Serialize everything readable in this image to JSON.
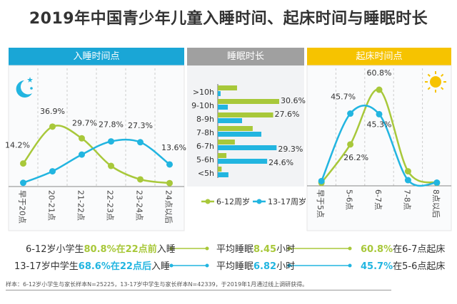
{
  "title": "2019年中国青少年儿童入睡时间、起床时间与睡眠时长",
  "colors": {
    "green": "#a8c83a",
    "blue": "#22b5e0",
    "sleep_header": "#1aa6d6",
    "duration_header": "#a0a0a0",
    "wake_header": "#f6c300"
  },
  "legend": [
    "6-12周岁",
    "13-17周岁"
  ],
  "chart_data": [
    {
      "type": "line",
      "title": "入睡时间点",
      "icon": "moon-icon",
      "categories": [
        "早于20点",
        "20-21点",
        "21-22点",
        "22-23点",
        "23-24点",
        "24点以后"
      ],
      "series": [
        {
          "name": "6-12周岁",
          "values": [
            14.2,
            36.9,
            29.7,
            12.7,
            4.4,
            2.1
          ],
          "labels": [
            "14.2%",
            "36.9%",
            "29.7%",
            "",
            "",
            ""
          ]
        },
        {
          "name": "13-17周岁",
          "values": [
            2.3,
            9.4,
            19.7,
            27.8,
            27.3,
            13.6
          ],
          "labels": [
            "",
            "",
            "",
            "27.8%",
            "27.3%",
            "13.6%"
          ]
        }
      ],
      "unit": "%",
      "ylim": [
        0,
        40
      ],
      "grid": "vertical dashed"
    },
    {
      "type": "bar",
      "orientation": "horizontal",
      "title": "睡眠时长",
      "categories": [
        ">10h",
        "9-10h",
        "8-9h",
        "7-8h",
        "6-7h",
        "5-6h",
        "<5h"
      ],
      "series": [
        {
          "name": "6-12周岁",
          "values": [
            9.6,
            30.6,
            27.6,
            17.4,
            8.5,
            4.3,
            1.9
          ],
          "labels": [
            "",
            "30.6%",
            "27.6%",
            "",
            "",
            "",
            ""
          ]
        },
        {
          "name": "13-17周岁",
          "values": [
            1.4,
            5.0,
            12.1,
            21.7,
            29.3,
            24.6,
            5.3
          ],
          "labels": [
            "",
            "",
            "",
            "",
            "29.3%",
            "24.6%",
            ""
          ]
        }
      ],
      "unit": "%",
      "xlim": [
        0,
        35
      ]
    },
    {
      "type": "line",
      "title": "起床时间点",
      "icon": "sun-icon",
      "categories": [
        "早于5点",
        "5-6点",
        "6-7点",
        "7-8点",
        "8点以后"
      ],
      "series": [
        {
          "name": "6-12周岁",
          "values": [
            1.9,
            26.2,
            60.8,
            9.2,
            1.9
          ],
          "labels": [
            "",
            "26.2%",
            "60.8%",
            "",
            ""
          ]
        },
        {
          "name": "13-17周岁",
          "values": [
            3.0,
            45.7,
            45.3,
            3.6,
            2.0
          ],
          "labels": [
            "",
            "45.7%",
            "45.3%",
            "",
            ""
          ]
        }
      ],
      "unit": "%",
      "ylim": [
        0,
        65
      ],
      "grid": "vertical dashed"
    }
  ],
  "summary": [
    {
      "pre": "6-12岁小学生",
      "hl": "80.8%在22点前",
      "post": "入睡",
      "mid_pre": "平均睡眠",
      "mid_hl": "8.45",
      "mid_post": "小时",
      "end_hl": "60.8%",
      "end_post": "在6-7点起床"
    },
    {
      "pre": "13-17岁中学生",
      "hl": "68.6%在22点后",
      "post": "入睡",
      "mid_pre": "平均睡眠",
      "mid_hl": "6.82",
      "mid_post": "小时",
      "end_hl": "45.7%",
      "end_post": "在5-6点起床"
    }
  ],
  "footnote": "样本：6-12岁小学生与家长样本N=25225，13-17岁中学生与家长样本N=42339，于2019年1月通过线上调研获得。"
}
